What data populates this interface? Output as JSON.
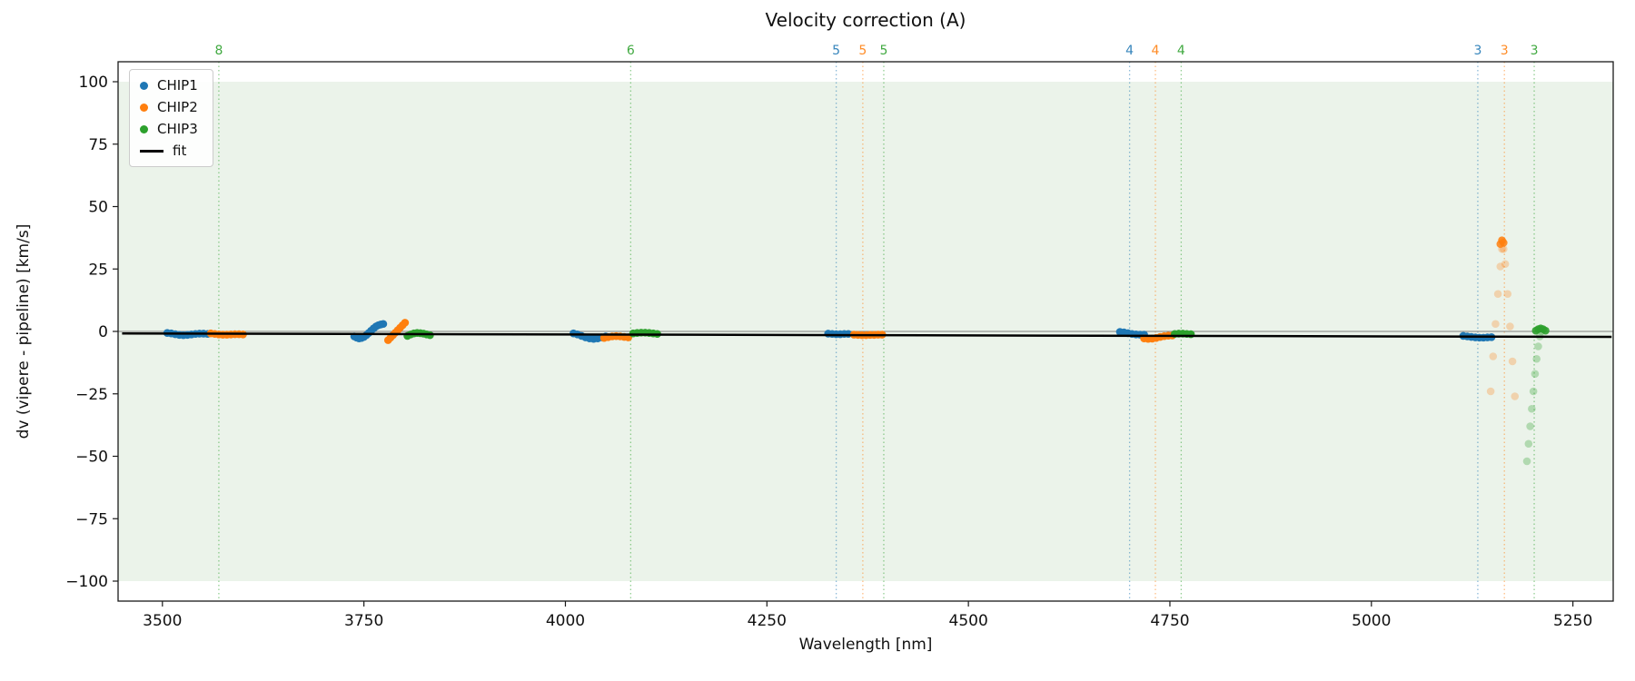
{
  "chart_data": {
    "type": "scatter",
    "title": "Velocity correction (A)",
    "xlabel": "Wavelength [nm]",
    "ylabel": "dv (vipere - pipeline) [km/s]",
    "xlim": [
      3445,
      5300
    ],
    "ylim": [
      -108,
      108
    ],
    "xticks": [
      3500,
      3750,
      4000,
      4250,
      4500,
      4750,
      5000,
      5250
    ],
    "xtick_labels": [
      "3500",
      "3750",
      "4000",
      "4250",
      "4500",
      "4750",
      "5000",
      "5250"
    ],
    "yticks": [
      -100,
      -75,
      -50,
      -25,
      0,
      25,
      50,
      75,
      100
    ],
    "ytick_labels": [
      "−100",
      "−75",
      "−50",
      "−25",
      "0",
      "25",
      "50",
      "75",
      "100"
    ],
    "shaded_band": {
      "y_min": -100,
      "y_max": 100,
      "color": "#ebf3ea"
    },
    "zero_line": {
      "y": 0,
      "color": "#7f7f7f"
    },
    "colors": {
      "CHIP1": "#1f77b4",
      "CHIP2": "#ff7f0e",
      "CHIP3": "#2ca02c",
      "fit": "#000000"
    },
    "order_lines": [
      {
        "x": 3570,
        "label": "8",
        "series": "CHIP3"
      },
      {
        "x": 4081,
        "label": "6",
        "series": "CHIP3"
      },
      {
        "x": 4336,
        "label": "5",
        "series": "CHIP1"
      },
      {
        "x": 4369,
        "label": "5",
        "series": "CHIP2"
      },
      {
        "x": 4395,
        "label": "5",
        "series": "CHIP3"
      },
      {
        "x": 4700,
        "label": "4",
        "series": "CHIP1"
      },
      {
        "x": 4732,
        "label": "4",
        "series": "CHIP2"
      },
      {
        "x": 4764,
        "label": "4",
        "series": "CHIP3"
      },
      {
        "x": 5132,
        "label": "3",
        "series": "CHIP1"
      },
      {
        "x": 5165,
        "label": "3",
        "series": "CHIP2"
      },
      {
        "x": 5202,
        "label": "3",
        "series": "CHIP3"
      }
    ],
    "series": [
      {
        "name": "CHIP1",
        "alpha": 1,
        "x": [
          3506,
          3511,
          3516,
          3521,
          3526,
          3531,
          3536,
          3541,
          3546,
          3551,
          3556
        ],
        "y": [
          -0.6,
          -0.8,
          -1.1,
          -1.4,
          -1.5,
          -1.4,
          -1.2,
          -1.0,
          -0.9,
          -0.9,
          -1.0
        ]
      },
      {
        "name": "CHIP2",
        "alpha": 1,
        "x": [
          3560,
          3565,
          3570,
          3575,
          3580,
          3585,
          3590,
          3595,
          3600
        ],
        "y": [
          -0.8,
          -1.0,
          -1.2,
          -1.3,
          -1.3,
          -1.2,
          -1.1,
          -1.1,
          -1.2
        ]
      },
      {
        "name": "CHIP1",
        "alpha": 1,
        "x": [
          3738,
          3741,
          3744,
          3747,
          3750,
          3753,
          3756,
          3759,
          3762,
          3765,
          3768,
          3771,
          3774
        ],
        "y": [
          -2.0,
          -2.5,
          -2.8,
          -2.6,
          -2.2,
          -1.5,
          -0.6,
          0.3,
          1.2,
          2.0,
          2.5,
          2.8,
          3.0
        ]
      },
      {
        "name": "CHIP2",
        "alpha": 1,
        "x": [
          3780,
          3783,
          3786,
          3789,
          3792,
          3795,
          3798,
          3801
        ],
        "y": [
          -3.5,
          -2.5,
          -1.5,
          -0.5,
          0.5,
          1.5,
          2.5,
          3.5
        ]
      },
      {
        "name": "CHIP3",
        "alpha": 1,
        "x": [
          3804,
          3808,
          3812,
          3816,
          3820,
          3824,
          3828,
          3832
        ],
        "y": [
          -1.8,
          -1.2,
          -0.8,
          -0.6,
          -0.7,
          -0.9,
          -1.2,
          -1.5
        ]
      },
      {
        "name": "CHIP1",
        "alpha": 1,
        "x": [
          4010,
          4015,
          4020,
          4025,
          4030,
          4035,
          4040,
          4045,
          4050
        ],
        "y": [
          -0.8,
          -1.2,
          -1.8,
          -2.4,
          -2.8,
          -3.0,
          -2.8,
          -2.4,
          -2.0
        ]
      },
      {
        "name": "CHIP2",
        "alpha": 1,
        "x": [
          4048,
          4053,
          4058,
          4063,
          4068,
          4073,
          4078
        ],
        "y": [
          -2.6,
          -2.3,
          -2.0,
          -1.9,
          -2.0,
          -2.2,
          -2.4
        ]
      },
      {
        "name": "CHIP3",
        "alpha": 1,
        "x": [
          4084,
          4089,
          4094,
          4099,
          4104,
          4109,
          4114
        ],
        "y": [
          -0.8,
          -0.6,
          -0.5,
          -0.5,
          -0.6,
          -0.8,
          -1.0
        ]
      },
      {
        "name": "CHIP1",
        "alpha": 1,
        "x": [
          4326,
          4331,
          4336,
          4341,
          4346,
          4351
        ],
        "y": [
          -0.9,
          -1.0,
          -1.1,
          -1.1,
          -1.0,
          -1.0
        ]
      },
      {
        "name": "CHIP2",
        "alpha": 1,
        "x": [
          4358,
          4363,
          4368,
          4373,
          4378,
          4383,
          4388,
          4393
        ],
        "y": [
          -1.3,
          -1.4,
          -1.5,
          -1.5,
          -1.4,
          -1.4,
          -1.3,
          -1.3
        ]
      },
      {
        "name": "CHIP1",
        "alpha": 1,
        "x": [
          4688,
          4693,
          4698,
          4703,
          4708,
          4713,
          4718
        ],
        "y": [
          -0.2,
          -0.4,
          -0.7,
          -1.0,
          -1.2,
          -1.3,
          -1.3
        ]
      },
      {
        "name": "CHIP2",
        "alpha": 1,
        "x": [
          4718,
          4723,
          4728,
          4733,
          4738,
          4743,
          4748,
          4753
        ],
        "y": [
          -2.8,
          -3.0,
          -2.9,
          -2.6,
          -2.2,
          -1.9,
          -1.7,
          -1.6
        ]
      },
      {
        "name": "CHIP3",
        "alpha": 1,
        "x": [
          4756,
          4761,
          4766,
          4771,
          4776
        ],
        "y": [
          -1.0,
          -0.9,
          -0.9,
          -1.0,
          -1.1
        ]
      },
      {
        "name": "CHIP1",
        "alpha": 1,
        "x": [
          5114,
          5119,
          5124,
          5129,
          5134,
          5139,
          5144,
          5149
        ],
        "y": [
          -1.8,
          -2.0,
          -2.2,
          -2.4,
          -2.5,
          -2.5,
          -2.4,
          -2.3
        ]
      },
      {
        "name": "CHIP2",
        "alpha": 0.28,
        "x": [
          5148,
          5151,
          5154,
          5157,
          5160,
          5162,
          5163,
          5164,
          5166,
          5169,
          5172,
          5175,
          5178
        ],
        "y": [
          -24,
          -10,
          3,
          15,
          26,
          33,
          36,
          33,
          27,
          15,
          2,
          -12,
          -26
        ]
      },
      {
        "name": "CHIP2",
        "alpha": 0.85,
        "x": [
          5160,
          5162,
          5164
        ],
        "y": [
          35,
          36.5,
          35.5
        ]
      },
      {
        "name": "CHIP3",
        "alpha": 0.3,
        "x": [
          5193,
          5195,
          5197,
          5199,
          5201,
          5203,
          5205,
          5207,
          5209,
          5211
        ],
        "y": [
          -52,
          -45,
          -38,
          -31,
          -24,
          -17,
          -11,
          -6,
          -2,
          0
        ]
      },
      {
        "name": "CHIP3",
        "alpha": 0.9,
        "x": [
          5204,
          5207,
          5210,
          5213,
          5216
        ],
        "y": [
          0.3,
          0.9,
          1.2,
          0.9,
          0.3
        ]
      }
    ],
    "fit_line": {
      "x": [
        3450,
        5298
      ],
      "y": [
        -0.8,
        -2.2
      ]
    }
  },
  "legend": {
    "items": [
      {
        "label": "CHIP1",
        "color": "#1f77b4",
        "marker": "dot"
      },
      {
        "label": "CHIP2",
        "color": "#ff7f0e",
        "marker": "dot"
      },
      {
        "label": "CHIP3",
        "color": "#2ca02c",
        "marker": "dot"
      },
      {
        "label": "fit",
        "color": "#000000",
        "marker": "line"
      }
    ]
  }
}
